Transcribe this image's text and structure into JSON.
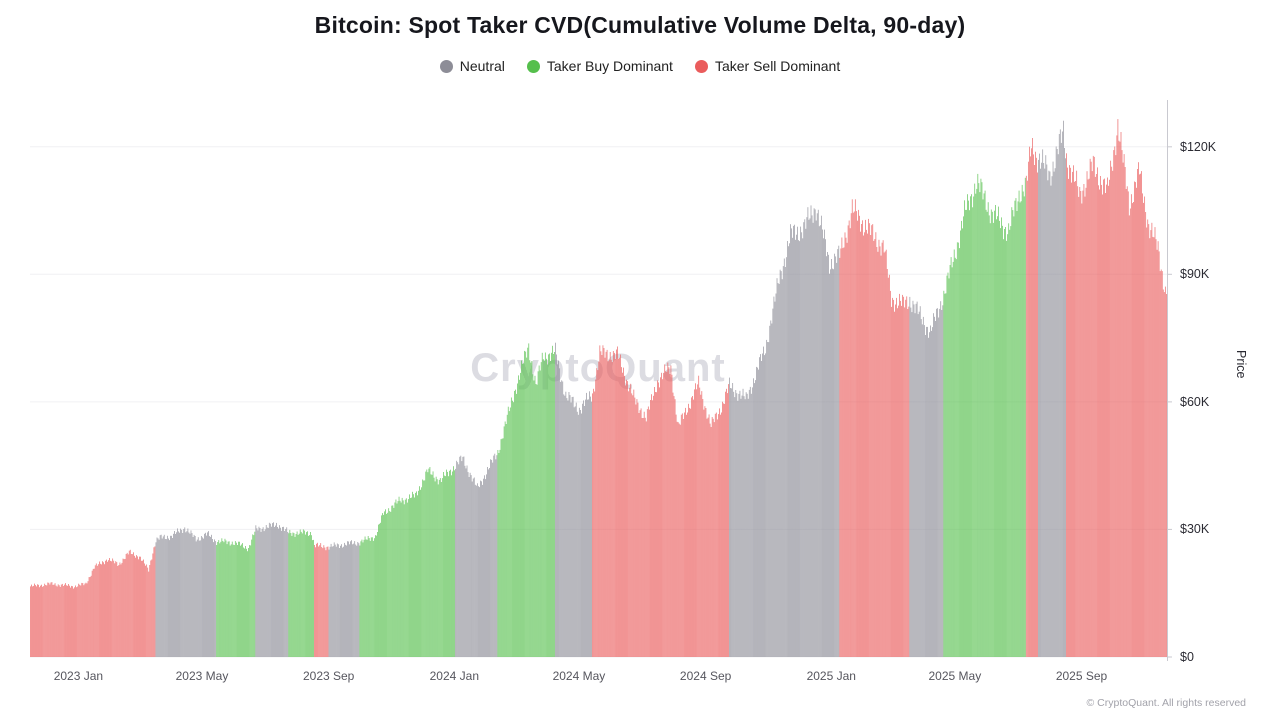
{
  "watermark": "CryptoQuant",
  "footer": "© CryptoQuant. All rights reserved",
  "legend": {
    "items": [
      {
        "key": "neutral",
        "label": "Neutral"
      },
      {
        "key": "buy",
        "label": "Taker Buy Dominant"
      },
      {
        "key": "sell",
        "label": "Taker Sell Dominant"
      }
    ]
  },
  "chart_data": {
    "type": "bar",
    "title": "Bitcoin: Spot Taker CVD(Cumulative Volume Delta, 90-day)",
    "xlabel": "",
    "ylabel": "Price",
    "units": "USD thousands",
    "x_range": [
      "2022-11-15",
      "2025-11-22"
    ],
    "ylim": [
      0,
      131
    ],
    "grid": "faint-horizontal",
    "legend_position": "top-center",
    "colors": {
      "neutral": "#8d8d97",
      "buy": "#55bf4c",
      "sell": "#ea5c5c"
    },
    "yticks": [
      {
        "label": "$0",
        "value": 0
      },
      {
        "label": "$30K",
        "value": 30
      },
      {
        "label": "$60K",
        "value": 60
      },
      {
        "label": "$90K",
        "value": 90
      },
      {
        "label": "$120K",
        "value": 120
      }
    ],
    "xticks": [
      {
        "label": "2023 Jan",
        "date": "2023-01-01"
      },
      {
        "label": "2023 May",
        "date": "2023-05-01"
      },
      {
        "label": "2023 Sep",
        "date": "2023-09-01"
      },
      {
        "label": "2024 Jan",
        "date": "2024-01-01"
      },
      {
        "label": "2024 May",
        "date": "2024-05-01"
      },
      {
        "label": "2024 Sep",
        "date": "2024-09-01"
      },
      {
        "label": "2025 Jan",
        "date": "2025-01-01"
      },
      {
        "label": "2025 May",
        "date": "2025-05-01"
      },
      {
        "label": "2025 Sep",
        "date": "2025-09-01"
      }
    ],
    "points": [
      [
        "2022-11-15",
        16.6,
        "sell"
      ],
      [
        "2022-12-05",
        17.2,
        "sell"
      ],
      [
        "2022-12-28",
        16.6,
        "sell"
      ],
      [
        "2023-01-08",
        17.2,
        "sell"
      ],
      [
        "2023-01-16",
        21.1,
        "sell"
      ],
      [
        "2023-01-29",
        23.0,
        "sell"
      ],
      [
        "2023-02-09",
        21.8,
        "sell"
      ],
      [
        "2023-02-19",
        24.6,
        "sell"
      ],
      [
        "2023-03-01",
        23.6,
        "sell"
      ],
      [
        "2023-03-10",
        20.5,
        "sell"
      ],
      [
        "2023-03-14",
        24.7,
        "sell"
      ],
      [
        "2023-03-17",
        27.4,
        "neutral"
      ],
      [
        "2023-03-22",
        28.1,
        "neutral"
      ],
      [
        "2023-04-01",
        28.4,
        "neutral"
      ],
      [
        "2023-04-14",
        30.4,
        "neutral"
      ],
      [
        "2023-04-25",
        27.7,
        "neutral"
      ],
      [
        "2023-05-06",
        28.9,
        "neutral"
      ],
      [
        "2023-05-15",
        27.2,
        "buy"
      ],
      [
        "2023-06-01",
        26.9,
        "buy"
      ],
      [
        "2023-06-15",
        25.6,
        "buy"
      ],
      [
        "2023-06-22",
        30.0,
        "neutral"
      ],
      [
        "2023-07-13",
        31.2,
        "neutral"
      ],
      [
        "2023-07-24",
        29.2,
        "buy"
      ],
      [
        "2023-08-15",
        29.2,
        "buy"
      ],
      [
        "2023-08-18",
        26.2,
        "sell"
      ],
      [
        "2023-09-01",
        25.9,
        "neutral"
      ],
      [
        "2023-09-18",
        26.6,
        "neutral"
      ],
      [
        "2023-10-01",
        27.0,
        "buy"
      ],
      [
        "2023-10-16",
        28.4,
        "buy"
      ],
      [
        "2023-10-24",
        33.8,
        "buy"
      ],
      [
        "2023-11-09",
        36.8,
        "buy"
      ],
      [
        "2023-11-24",
        37.9,
        "buy"
      ],
      [
        "2023-12-06",
        43.8,
        "buy"
      ],
      [
        "2023-12-18",
        41.5,
        "buy"
      ],
      [
        "2024-01-02",
        45.0,
        "neutral"
      ],
      [
        "2024-01-09",
        46.7,
        "neutral"
      ],
      [
        "2024-01-23",
        39.6,
        "neutral"
      ],
      [
        "2024-02-12",
        48.2,
        "buy"
      ],
      [
        "2024-02-28",
        62.4,
        "buy"
      ],
      [
        "2024-03-13",
        73.1,
        "buy"
      ],
      [
        "2024-03-20",
        63.8,
        "buy"
      ],
      [
        "2024-03-27",
        70.8,
        "buy"
      ],
      [
        "2024-04-08",
        71.6,
        "neutral"
      ],
      [
        "2024-04-18",
        61.5,
        "neutral"
      ],
      [
        "2024-05-01",
        58.3,
        "neutral"
      ],
      [
        "2024-05-14",
        61.8,
        "sell"
      ],
      [
        "2024-05-21",
        71.4,
        "sell"
      ],
      [
        "2024-06-07",
        71.1,
        "sell"
      ],
      [
        "2024-06-24",
        60.3,
        "sell"
      ],
      [
        "2024-07-05",
        56.3,
        "sell"
      ],
      [
        "2024-07-16",
        64.8,
        "sell"
      ],
      [
        "2024-07-29",
        68.3,
        "sell"
      ],
      [
        "2024-08-05",
        54.0,
        "sell"
      ],
      [
        "2024-08-25",
        64.2,
        "sell"
      ],
      [
        "2024-09-06",
        54.3,
        "sell"
      ],
      [
        "2024-09-16",
        58.9,
        "sell"
      ],
      [
        "2024-09-24",
        63.8,
        "neutral"
      ],
      [
        "2024-10-10",
        60.6,
        "neutral"
      ],
      [
        "2024-10-29",
        72.7,
        "neutral"
      ],
      [
        "2024-11-11",
        88.8,
        "neutral"
      ],
      [
        "2024-11-22",
        99.0,
        "neutral"
      ],
      [
        "2024-12-06",
        101.2,
        "neutral"
      ],
      [
        "2024-12-17",
        106.1,
        "neutral"
      ],
      [
        "2024-12-30",
        92.6,
        "neutral"
      ],
      [
        "2025-01-09",
        94.4,
        "sell"
      ],
      [
        "2025-01-21",
        105.1,
        "sell"
      ],
      [
        "2025-02-03",
        101.4,
        "sell"
      ],
      [
        "2025-02-21",
        96.2,
        "sell"
      ],
      [
        "2025-02-28",
        84.3,
        "sell"
      ],
      [
        "2025-03-11",
        82.9,
        "sell"
      ],
      [
        "2025-03-18",
        84.1,
        "neutral"
      ],
      [
        "2025-04-07",
        76.3,
        "neutral"
      ],
      [
        "2025-04-20",
        85.2,
        "buy"
      ],
      [
        "2025-04-30",
        94.2,
        "buy"
      ],
      [
        "2025-05-10",
        104.1,
        "buy"
      ],
      [
        "2025-05-22",
        111.7,
        "buy"
      ],
      [
        "2025-06-05",
        104.6,
        "buy"
      ],
      [
        "2025-06-22",
        100.1,
        "buy"
      ],
      [
        "2025-07-03",
        109.6,
        "buy"
      ],
      [
        "2025-07-09",
        111.2,
        "sell"
      ],
      [
        "2025-07-14",
        120.0,
        "sell"
      ],
      [
        "2025-07-21",
        117.3,
        "neutral"
      ],
      [
        "2025-08-01",
        113.4,
        "neutral"
      ],
      [
        "2025-08-14",
        123.3,
        "neutral"
      ],
      [
        "2025-08-17",
        117.4,
        "sell"
      ],
      [
        "2025-08-30",
        108.8,
        "sell"
      ],
      [
        "2025-09-12",
        115.6,
        "sell"
      ],
      [
        "2025-09-26",
        109.3,
        "sell"
      ],
      [
        "2025-10-06",
        125.2,
        "sell"
      ],
      [
        "2025-10-17",
        106.6,
        "sell"
      ],
      [
        "2025-10-27",
        114.1,
        "sell"
      ],
      [
        "2025-11-05",
        101.6,
        "sell"
      ],
      [
        "2025-11-14",
        96.1,
        "sell"
      ],
      [
        "2025-11-21",
        86.0,
        "sell"
      ]
    ]
  }
}
